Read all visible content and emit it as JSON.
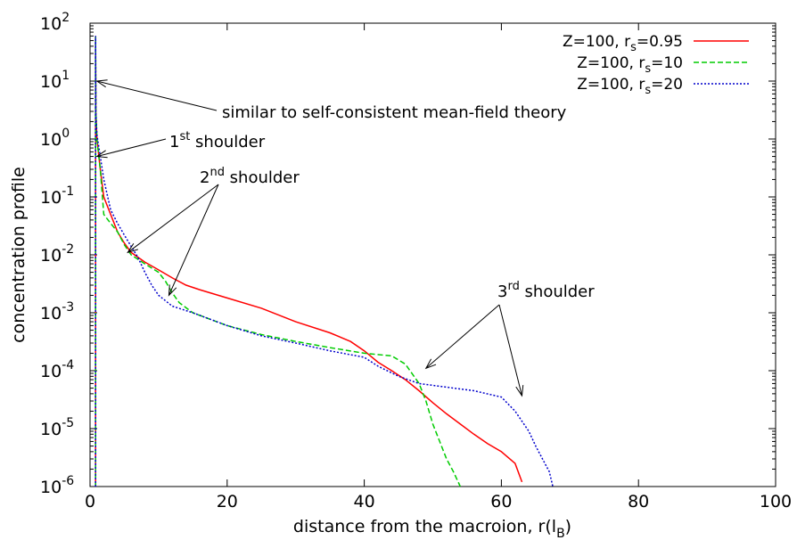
{
  "chart_data": {
    "type": "line",
    "xlabel": "distance from the macroion, r(l",
    "xlabel_sub": "B",
    "xlabel_close": ")",
    "ylabel": "concentration profile",
    "xlim": [
      0,
      100
    ],
    "ylim": [
      1e-06,
      100
    ],
    "yscale": "log",
    "grid": false,
    "legend_position": "top-right",
    "x_ticks": [
      {
        "value": 0,
        "label": "0"
      },
      {
        "value": 20,
        "label": "20"
      },
      {
        "value": 40,
        "label": "40"
      },
      {
        "value": 60,
        "label": "60"
      },
      {
        "value": 80,
        "label": "80"
      },
      {
        "value": 100,
        "label": "100"
      }
    ],
    "y_ticks": [
      {
        "value": 100,
        "base": "10",
        "exp": "2"
      },
      {
        "value": 10,
        "base": "10",
        "exp": "1"
      },
      {
        "value": 1,
        "base": "10",
        "exp": "0"
      },
      {
        "value": 0.1,
        "base": "10",
        "exp": "-1"
      },
      {
        "value": 0.01,
        "base": "10",
        "exp": "-2"
      },
      {
        "value": 0.001,
        "base": "10",
        "exp": "-3"
      },
      {
        "value": 0.0001,
        "base": "10",
        "exp": "-4"
      },
      {
        "value": 1e-05,
        "base": "10",
        "exp": "-5"
      },
      {
        "value": 1e-06,
        "base": "10",
        "exp": "-6"
      }
    ],
    "series": [
      {
        "label_main": "Z=100, r",
        "label_sub": "s",
        "label_tail": "=0.95",
        "color": "#ff0000",
        "dash": "",
        "points": [
          [
            0.8,
            1e-06
          ],
          [
            0.8,
            60
          ],
          [
            0.85,
            3
          ],
          [
            1,
            1
          ],
          [
            1.5,
            0.3
          ],
          [
            2,
            0.1
          ],
          [
            3,
            0.05
          ],
          [
            4,
            0.025
          ],
          [
            5,
            0.016
          ],
          [
            6,
            0.011
          ],
          [
            8,
            0.0075
          ],
          [
            10,
            0.0055
          ],
          [
            12,
            0.004
          ],
          [
            14,
            0.003
          ],
          [
            16,
            0.0025
          ],
          [
            20,
            0.0018
          ],
          [
            25,
            0.0012
          ],
          [
            30,
            0.0007
          ],
          [
            35,
            0.00045
          ],
          [
            38,
            0.00032
          ],
          [
            40,
            0.00022
          ],
          [
            42,
            0.00014
          ],
          [
            44,
            0.0001
          ],
          [
            46,
            7e-05
          ],
          [
            48,
            4.5e-05
          ],
          [
            50,
            2.8e-05
          ],
          [
            52,
            1.8e-05
          ],
          [
            54,
            1.2e-05
          ],
          [
            56,
            8e-06
          ],
          [
            58,
            5.5e-06
          ],
          [
            60,
            4e-06
          ],
          [
            62,
            2.5e-06
          ],
          [
            63,
            1.2e-06
          ]
        ]
      },
      {
        "label_main": "Z=100, r",
        "label_sub": "s",
        "label_tail": "=10",
        "color": "#00cc00",
        "dash": "6,3",
        "points": [
          [
            0.8,
            1e-06
          ],
          [
            0.8,
            60
          ],
          [
            0.85,
            3
          ],
          [
            1,
            1
          ],
          [
            1.5,
            0.3
          ],
          [
            2,
            0.05
          ],
          [
            3,
            0.035
          ],
          [
            4,
            0.025
          ],
          [
            5,
            0.015
          ],
          [
            6,
            0.01
          ],
          [
            8,
            0.007
          ],
          [
            10,
            0.005
          ],
          [
            11,
            0.0035
          ],
          [
            12,
            0.0022
          ],
          [
            13,
            0.0015
          ],
          [
            15,
            0.001
          ],
          [
            20,
            0.0006
          ],
          [
            25,
            0.00042
          ],
          [
            30,
            0.00032
          ],
          [
            35,
            0.00025
          ],
          [
            40,
            0.0002
          ],
          [
            44,
            0.00018
          ],
          [
            46,
            0.00013
          ],
          [
            48,
            6e-05
          ],
          [
            49,
            3e-05
          ],
          [
            50,
            1.2e-05
          ],
          [
            51,
            6e-06
          ],
          [
            52,
            3e-06
          ],
          [
            53,
            1.8e-06
          ],
          [
            54,
            1e-06
          ]
        ]
      },
      {
        "label_main": "Z=100, r",
        "label_sub": "s",
        "label_tail": "=20",
        "color": "#0000cc",
        "dash": "2,2",
        "points": [
          [
            0.8,
            1e-06
          ],
          [
            0.8,
            60
          ],
          [
            0.85,
            3
          ],
          [
            1,
            1.2
          ],
          [
            1.5,
            0.5
          ],
          [
            2,
            0.2
          ],
          [
            3,
            0.06
          ],
          [
            4,
            0.035
          ],
          [
            5,
            0.022
          ],
          [
            6,
            0.014
          ],
          [
            7,
            0.009
          ],
          [
            8,
            0.005
          ],
          [
            9,
            0.003
          ],
          [
            10,
            0.002
          ],
          [
            12,
            0.0013
          ],
          [
            15,
            0.001
          ],
          [
            20,
            0.0006
          ],
          [
            25,
            0.0004
          ],
          [
            30,
            0.0003
          ],
          [
            35,
            0.00022
          ],
          [
            40,
            0.00017
          ],
          [
            42,
            0.00012
          ],
          [
            45,
            8e-05
          ],
          [
            48,
            6e-05
          ],
          [
            52,
            5.2e-05
          ],
          [
            56,
            4.5e-05
          ],
          [
            60,
            3.5e-05
          ],
          [
            62,
            2e-05
          ],
          [
            64,
            9e-06
          ],
          [
            65,
            5e-06
          ],
          [
            66,
            3e-06
          ],
          [
            67,
            1.8e-06
          ],
          [
            67.5,
            1e-06
          ]
        ]
      }
    ],
    "annotations": [
      {
        "id": "mean-field",
        "text": "similar to self-consistent mean-field theory",
        "sup": "",
        "tail": ""
      },
      {
        "id": "first",
        "text": "1",
        "sup": "st",
        "tail": " shoulder"
      },
      {
        "id": "second",
        "text": "2",
        "sup": "nd",
        "tail": " shoulder"
      },
      {
        "id": "third",
        "text": "3",
        "sup": "rd",
        "tail": " shoulder"
      }
    ]
  }
}
